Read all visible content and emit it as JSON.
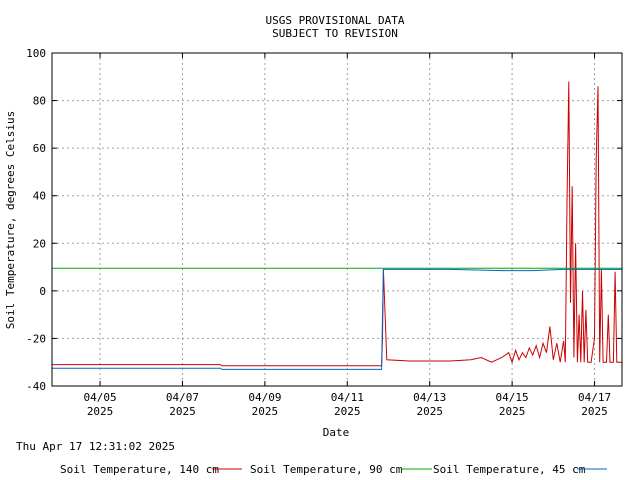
{
  "chart_data": {
    "type": "line",
    "title": [
      "USGS PROVISIONAL DATA",
      "SUBJECT TO REVISION"
    ],
    "xlabel": "Date",
    "ylabel": "Soil Temperature, degrees Celsius",
    "ylim": [
      -40,
      100
    ],
    "yticks": [
      -40,
      -20,
      0,
      20,
      40,
      60,
      80,
      100
    ],
    "xlim": [
      "2025-04-03T20:00",
      "2025-04-17T16:00"
    ],
    "xticks": [
      {
        "x": "2025-04-05",
        "label": "04/05",
        "year": "2025"
      },
      {
        "x": "2025-04-07",
        "label": "04/07",
        "year": "2025"
      },
      {
        "x": "2025-04-09",
        "label": "04/09",
        "year": "2025"
      },
      {
        "x": "2025-04-11",
        "label": "04/11",
        "year": "2025"
      },
      {
        "x": "2025-04-13",
        "label": "04/13",
        "year": "2025"
      },
      {
        "x": "2025-04-15",
        "label": "04/15",
        "year": "2025"
      },
      {
        "x": "2025-04-17",
        "label": "04/17",
        "year": "2025"
      }
    ],
    "grid": true,
    "legend_position": "bottom",
    "series": [
      {
        "name": "Soil Temperature, 140 cm",
        "color": "#cc0000",
        "points": [
          [
            "2025-04-03T20:00",
            -31
          ],
          [
            "2025-04-07T22:00",
            -31
          ],
          [
            "2025-04-07T23:00",
            -31.5
          ],
          [
            "2025-04-11T20:00",
            -31.5
          ],
          [
            "2025-04-11T20:30",
            -20
          ],
          [
            "2025-04-11T21:00",
            9
          ],
          [
            "2025-04-11T23:00",
            -29
          ],
          [
            "2025-04-12T12:00",
            -29.5
          ],
          [
            "2025-04-13T12:00",
            -29.5
          ],
          [
            "2025-04-14T00:00",
            -29
          ],
          [
            "2025-04-14T06:00",
            -28
          ],
          [
            "2025-04-14T12:00",
            -30
          ],
          [
            "2025-04-14T18:00",
            -28
          ],
          [
            "2025-04-14T22:00",
            -26
          ],
          [
            "2025-04-15T00:00",
            -30
          ],
          [
            "2025-04-15T02:00",
            -25
          ],
          [
            "2025-04-15T04:00",
            -29
          ],
          [
            "2025-04-15T06:00",
            -26
          ],
          [
            "2025-04-15T08:00",
            -28
          ],
          [
            "2025-04-15T10:00",
            -24
          ],
          [
            "2025-04-15T12:00",
            -27
          ],
          [
            "2025-04-15T14:00",
            -23
          ],
          [
            "2025-04-15T16:00",
            -28
          ],
          [
            "2025-04-15T18:00",
            -22
          ],
          [
            "2025-04-15T20:00",
            -26
          ],
          [
            "2025-04-15T22:00",
            -15
          ],
          [
            "2025-04-16T00:00",
            -29
          ],
          [
            "2025-04-16T02:00",
            -22
          ],
          [
            "2025-04-16T04:00",
            -30
          ],
          [
            "2025-04-16T06:00",
            -21
          ],
          [
            "2025-04-16T07:00",
            -30
          ],
          [
            "2025-04-16T08:00",
            40
          ],
          [
            "2025-04-16T09:00",
            88
          ],
          [
            "2025-04-16T10:00",
            -5
          ],
          [
            "2025-04-16T11:00",
            44
          ],
          [
            "2025-04-16T12:00",
            -28
          ],
          [
            "2025-04-16T13:00",
            20
          ],
          [
            "2025-04-16T14:00",
            -30
          ],
          [
            "2025-04-16T15:00",
            -10
          ],
          [
            "2025-04-16T16:00",
            -30
          ],
          [
            "2025-04-16T17:00",
            0
          ],
          [
            "2025-04-16T18:00",
            -30
          ],
          [
            "2025-04-16T19:00",
            -8
          ],
          [
            "2025-04-16T20:00",
            -30
          ],
          [
            "2025-04-16T22:00",
            -30
          ],
          [
            "2025-04-17T00:00",
            -20
          ],
          [
            "2025-04-17T01:00",
            55
          ],
          [
            "2025-04-17T02:00",
            86
          ],
          [
            "2025-04-17T03:00",
            -30
          ],
          [
            "2025-04-17T04:00",
            9
          ],
          [
            "2025-04-17T05:00",
            -30
          ],
          [
            "2025-04-17T07:00",
            -30
          ],
          [
            "2025-04-17T08:00",
            -10
          ],
          [
            "2025-04-17T09:00",
            -30
          ],
          [
            "2025-04-17T11:00",
            -30
          ],
          [
            "2025-04-17T12:00",
            8
          ],
          [
            "2025-04-17T13:00",
            -30
          ],
          [
            "2025-04-17T16:00",
            -30
          ]
        ]
      },
      {
        "name": "Soil Temperature, 90 cm",
        "color": "#00aa00",
        "points": [
          [
            "2025-04-03T20:00",
            9.5
          ],
          [
            "2025-04-11T21:00",
            9.5
          ],
          [
            "2025-04-12T00:00",
            9.5
          ],
          [
            "2025-04-17T16:00",
            9.5
          ]
        ]
      },
      {
        "name": "Soil Temperature, 45 cm",
        "color": "#0066cc",
        "points": [
          [
            "2025-04-03T20:00",
            -32.5
          ],
          [
            "2025-04-07T22:00",
            -32.5
          ],
          [
            "2025-04-07T23:00",
            -33
          ],
          [
            "2025-04-11T20:00",
            -33
          ],
          [
            "2025-04-11T20:30",
            -10
          ],
          [
            "2025-04-11T21:00",
            9
          ],
          [
            "2025-04-11T23:00",
            9
          ],
          [
            "2025-04-12T12:00",
            9
          ],
          [
            "2025-04-13T12:00",
            9
          ],
          [
            "2025-04-14T18:00",
            8.5
          ],
          [
            "2025-04-15T12:00",
            8.5
          ],
          [
            "2025-04-16T06:00",
            9
          ],
          [
            "2025-04-17T16:00",
            9
          ]
        ]
      }
    ]
  },
  "timestamp": "Thu Apr 17 12:31:02 2025"
}
